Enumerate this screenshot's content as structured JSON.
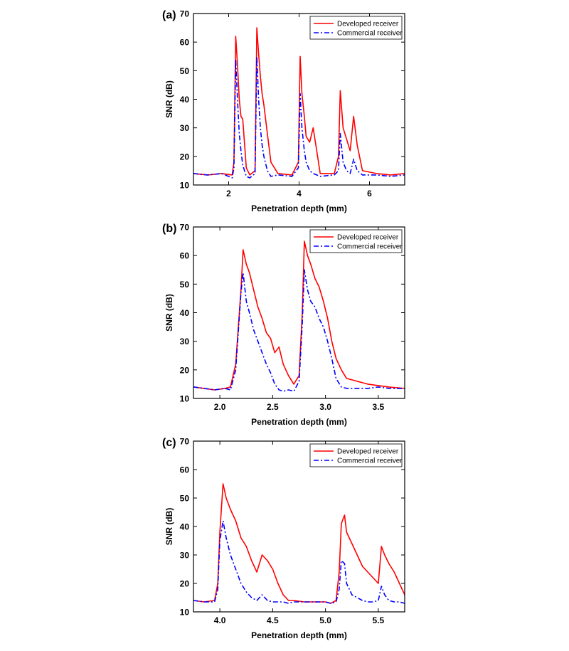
{
  "chart_data": [
    {
      "panel_label": "(a)",
      "type": "line",
      "xlabel": "Penetration depth (mm)",
      "ylabel": "SNR (dB)",
      "xlim": [
        1,
        7
      ],
      "ylim": [
        10,
        70
      ],
      "xticks": [
        2,
        4,
        6
      ],
      "yticks": [
        10,
        20,
        30,
        40,
        50,
        60,
        70
      ],
      "xtick_labels": [
        "2",
        "4",
        "6"
      ],
      "ytick_labels": [
        "10",
        "20",
        "30",
        "40",
        "50",
        "60",
        "70"
      ],
      "legend_position": "top-right",
      "grid": false,
      "series": [
        {
          "name": "Developed receiver",
          "color": "#ff0000",
          "style": "solid",
          "x": [
            1.0,
            1.4,
            1.8,
            2.1,
            2.15,
            2.2,
            2.25,
            2.3,
            2.35,
            2.4,
            2.5,
            2.6,
            2.75,
            2.8,
            2.85,
            2.9,
            2.95,
            3.0,
            3.1,
            3.2,
            3.4,
            3.8,
            3.98,
            4.03,
            4.08,
            4.15,
            4.2,
            4.3,
            4.4,
            4.5,
            4.6,
            5.0,
            5.12,
            5.17,
            5.25,
            5.35,
            5.45,
            5.55,
            5.65,
            5.8,
            6.2,
            6.6,
            7.0
          ],
          "y": [
            14,
            13.5,
            14,
            13.5,
            18,
            62,
            52,
            40,
            34,
            33,
            16,
            13.5,
            15,
            65,
            56,
            48,
            42,
            38,
            28,
            18,
            14,
            13.5,
            18,
            55,
            42,
            34,
            27,
            25,
            30,
            22,
            14,
            14,
            20,
            43,
            30,
            26,
            22,
            34,
            24,
            15,
            14,
            13.5,
            14
          ]
        },
        {
          "name": "Commercial receiver",
          "color": "#0000ff",
          "style": "dash-dot",
          "x": [
            1.0,
            1.4,
            1.8,
            2.1,
            2.15,
            2.2,
            2.25,
            2.3,
            2.35,
            2.4,
            2.5,
            2.6,
            2.75,
            2.8,
            2.85,
            2.9,
            2.95,
            3.0,
            3.1,
            3.2,
            3.4,
            3.8,
            3.98,
            4.03,
            4.08,
            4.15,
            4.2,
            4.3,
            4.4,
            4.5,
            4.6,
            5.0,
            5.12,
            5.17,
            5.25,
            5.35,
            5.45,
            5.55,
            5.65,
            5.8,
            6.2,
            6.6,
            7.0
          ],
          "y": [
            14,
            13.5,
            14,
            12.5,
            16,
            54,
            40,
            28,
            22,
            17,
            13,
            12.5,
            14,
            55,
            40,
            30,
            24,
            20,
            15,
            13,
            13.5,
            13,
            16,
            42,
            30,
            22,
            18,
            15,
            14,
            13.5,
            13,
            13.5,
            15,
            28,
            18,
            15,
            14,
            19,
            15,
            13.5,
            13.5,
            13,
            13.5
          ]
        }
      ]
    },
    {
      "panel_label": "(b)",
      "type": "line",
      "xlabel": "Penetration depth (mm)",
      "ylabel": "SNR (dB)",
      "xlim": [
        1.75,
        3.75
      ],
      "ylim": [
        10,
        70
      ],
      "xticks": [
        2.0,
        2.5,
        3.0,
        3.5
      ],
      "yticks": [
        10,
        20,
        30,
        40,
        50,
        60,
        70
      ],
      "xtick_labels": [
        "2.0",
        "2.5",
        "3.0",
        "3.5"
      ],
      "ytick_labels": [
        "10",
        "20",
        "30",
        "40",
        "50",
        "60",
        "70"
      ],
      "legend_position": "top-right",
      "grid": false,
      "series": [
        {
          "name": "Developed receiver",
          "color": "#ff0000",
          "style": "solid",
          "x": [
            1.75,
            1.85,
            1.95,
            2.05,
            2.1,
            2.15,
            2.2,
            2.22,
            2.25,
            2.28,
            2.32,
            2.36,
            2.4,
            2.44,
            2.48,
            2.52,
            2.56,
            2.6,
            2.65,
            2.7,
            2.75,
            2.78,
            2.8,
            2.83,
            2.86,
            2.9,
            2.94,
            2.98,
            3.02,
            3.06,
            3.1,
            3.15,
            3.2,
            3.3,
            3.4,
            3.5,
            3.6,
            3.75
          ],
          "y": [
            14,
            13.5,
            13,
            13.5,
            14,
            22,
            48,
            62,
            57,
            54,
            48,
            42,
            38,
            33,
            31,
            26,
            28,
            22,
            18,
            15,
            18,
            40,
            65,
            60,
            57,
            52,
            49,
            44,
            38,
            30,
            24,
            20,
            17,
            16,
            15,
            14.5,
            14,
            13.5
          ]
        },
        {
          "name": "Commercial receiver",
          "color": "#0000ff",
          "style": "dash-dot",
          "x": [
            1.75,
            1.85,
            1.95,
            2.05,
            2.1,
            2.15,
            2.2,
            2.22,
            2.25,
            2.28,
            2.32,
            2.36,
            2.4,
            2.44,
            2.48,
            2.52,
            2.56,
            2.6,
            2.65,
            2.7,
            2.75,
            2.78,
            2.8,
            2.83,
            2.86,
            2.9,
            2.94,
            2.98,
            3.02,
            3.06,
            3.1,
            3.15,
            3.2,
            3.3,
            3.4,
            3.5,
            3.6,
            3.75
          ],
          "y": [
            14,
            13.5,
            13,
            13.5,
            13,
            20,
            47,
            54,
            44,
            40,
            34,
            30,
            26,
            22,
            19,
            15,
            13,
            12.5,
            13,
            12.5,
            16,
            36,
            55,
            48,
            44,
            42,
            38,
            35,
            30,
            24,
            17,
            14,
            13.5,
            13.5,
            13.5,
            14,
            13.5,
            13.5
          ]
        }
      ]
    },
    {
      "panel_label": "(c)",
      "type": "line",
      "xlabel": "Penetration depth (mm)",
      "ylabel": "SNR (dB)",
      "xlim": [
        3.75,
        5.75
      ],
      "ylim": [
        10,
        70
      ],
      "xticks": [
        4.0,
        4.5,
        5.0,
        5.5
      ],
      "yticks": [
        10,
        20,
        30,
        40,
        50,
        60,
        70
      ],
      "xtick_labels": [
        "4.0",
        "4.5",
        "5.0",
        "5.5"
      ],
      "ytick_labels": [
        "10",
        "20",
        "30",
        "40",
        "50",
        "60",
        "70"
      ],
      "legend_position": "top-right",
      "grid": false,
      "series": [
        {
          "name": "Developed receiver",
          "color": "#ff0000",
          "style": "solid",
          "x": [
            3.75,
            3.85,
            3.95,
            3.98,
            4.0,
            4.03,
            4.06,
            4.1,
            4.15,
            4.2,
            4.25,
            4.3,
            4.35,
            4.4,
            4.45,
            4.5,
            4.55,
            4.6,
            4.65,
            4.7,
            4.8,
            4.9,
            5.0,
            5.05,
            5.1,
            5.13,
            5.15,
            5.18,
            5.2,
            5.25,
            5.3,
            5.35,
            5.4,
            5.45,
            5.5,
            5.53,
            5.56,
            5.6,
            5.65,
            5.7,
            5.75
          ],
          "y": [
            14,
            13.5,
            14,
            20,
            38,
            55,
            50,
            46,
            42,
            36,
            33,
            28,
            24,
            30,
            28,
            25,
            20,
            16,
            14,
            14,
            13.5,
            13.5,
            13.5,
            13,
            14,
            24,
            41,
            44,
            38,
            34,
            30,
            26,
            24,
            22,
            20,
            33,
            30,
            27,
            24,
            20,
            16
          ]
        },
        {
          "name": "Commercial receiver",
          "color": "#0000ff",
          "style": "dash-dot",
          "x": [
            3.75,
            3.85,
            3.95,
            3.98,
            4.0,
            4.03,
            4.06,
            4.1,
            4.15,
            4.2,
            4.25,
            4.3,
            4.35,
            4.4,
            4.45,
            4.5,
            4.55,
            4.6,
            4.65,
            4.7,
            4.8,
            4.9,
            5.0,
            5.05,
            5.1,
            5.13,
            5.15,
            5.18,
            5.2,
            5.25,
            5.3,
            5.35,
            5.4,
            5.45,
            5.5,
            5.53,
            5.56,
            5.6,
            5.65,
            5.7,
            5.75
          ],
          "y": [
            14,
            13.5,
            13.5,
            18,
            35,
            42,
            36,
            30,
            25,
            20,
            17,
            15,
            14,
            16,
            14,
            13.5,
            13.5,
            13.5,
            13,
            13.5,
            13.5,
            13.5,
            13.5,
            13,
            13.5,
            18,
            28,
            27,
            20,
            16,
            15,
            14,
            13.5,
            13.5,
            14,
            19,
            16,
            14,
            13.5,
            13.5,
            13
          ]
        }
      ]
    }
  ]
}
